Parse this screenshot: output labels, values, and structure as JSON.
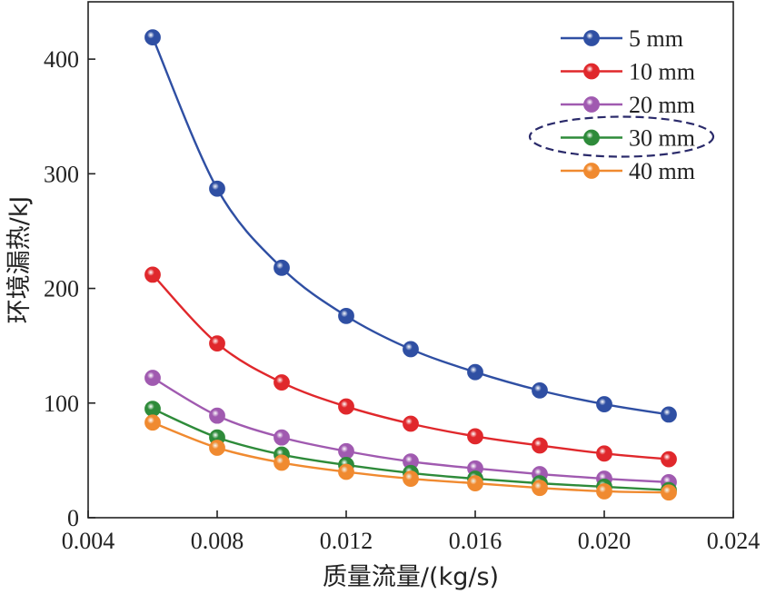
{
  "chart_data": {
    "type": "line",
    "title": "",
    "xlabel": "质量流量/(kg/s)",
    "ylabel": "环境漏热/kJ",
    "xlim": [
      0.004,
      0.024
    ],
    "ylim": [
      0,
      450
    ],
    "xticks": [
      0.004,
      0.008,
      0.012,
      0.016,
      0.02,
      0.024
    ],
    "xtick_labels": [
      "0.004",
      "0.008",
      "0.012",
      "0.016",
      "0.020",
      "0.024"
    ],
    "yticks": [
      0,
      100,
      200,
      300,
      400
    ],
    "ytick_labels": [
      "0",
      "100",
      "200",
      "300",
      "400"
    ],
    "grid": false,
    "legend_position": "top-right",
    "x": [
      0.006,
      0.008,
      0.01,
      0.012,
      0.014,
      0.016,
      0.018,
      0.02,
      0.022
    ],
    "series": [
      {
        "name": "5 mm",
        "color": "#2f4fa3",
        "values": [
          419,
          287,
          218,
          176,
          147,
          127,
          111,
          99,
          90
        ]
      },
      {
        "name": "10 mm",
        "color": "#e0282c",
        "values": [
          212,
          152,
          118,
          97,
          82,
          71,
          63,
          56,
          51
        ]
      },
      {
        "name": "20 mm",
        "color": "#a05ab0",
        "values": [
          122,
          89,
          70,
          58,
          49,
          43,
          38,
          34,
          31
        ]
      },
      {
        "name": "30 mm",
        "color": "#2e8b3a",
        "values": [
          95,
          70,
          55,
          46,
          39,
          34,
          30,
          27,
          24
        ]
      },
      {
        "name": "40 mm",
        "color": "#f08a30",
        "values": [
          83,
          61,
          48,
          40,
          34,
          30,
          26,
          23,
          22
        ]
      }
    ],
    "annotations": [
      {
        "type": "dashed-ellipse",
        "target_series": "30 mm",
        "color": "#2a2a6a"
      }
    ]
  }
}
